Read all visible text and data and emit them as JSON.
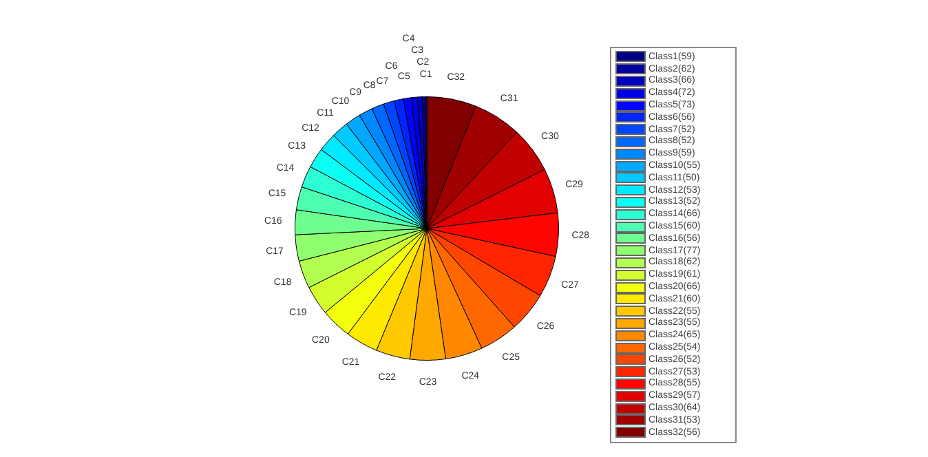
{
  "chart_data": {
    "type": "pie",
    "legend": "right",
    "categories": [
      "Class1(59)",
      "Class2(62)",
      "Class3(66)",
      "Class4(72)",
      "Class5(73)",
      "Class6(56)",
      "Class7(52)",
      "Class8(52)",
      "Class9(59)",
      "Class10(55)",
      "Class11(50)",
      "Class12(53)",
      "Class13(52)",
      "Class14(66)",
      "Class15(60)",
      "Class16(56)",
      "Class17(77)",
      "Class18(62)",
      "Class19(61)",
      "Class20(66)",
      "Class21(60)",
      "Class22(55)",
      "Class23(55)",
      "Class24(65)",
      "Class25(54)",
      "Class26(52)",
      "Class27(53)",
      "Class28(55)",
      "Class29(57)",
      "Class30(64)",
      "Class31(53)",
      "Class32(56)"
    ],
    "values": [
      0.19,
      0.38,
      0.57,
      0.76,
      0.95,
      1.14,
      1.33,
      1.52,
      1.7,
      1.89,
      2.08,
      2.27,
      2.46,
      2.65,
      2.84,
      3.03,
      3.22,
      3.41,
      3.6,
      3.79,
      3.98,
      4.17,
      4.36,
      4.55,
      4.73,
      4.92,
      5.11,
      5.3,
      5.49,
      5.68,
      5.87,
      6.06
    ],
    "colors": [
      "#000080",
      "#0000a0",
      "#0000c1",
      "#0000e2",
      "#0004ff",
      "#0025ff",
      "#0046ff",
      "#0067ff",
      "#0088ff",
      "#00a9ff",
      "#00c9ff",
      "#00eaff",
      "#0cfff3",
      "#2dffd2",
      "#4effb1",
      "#6fff90",
      "#90ff6f",
      "#b1ff4e",
      "#d2ff2d",
      "#f3ff0c",
      "#ffea00",
      "#ffc900",
      "#ffa900",
      "#ff8800",
      "#ff6700",
      "#ff4600",
      "#ff2500",
      "#ff0400",
      "#e20000",
      "#c10000",
      "#a00000",
      "#800000"
    ],
    "annotations": [
      "C1",
      "C2",
      "C3",
      "C4",
      "C5",
      "C6",
      "C7",
      "C8",
      "C9",
      "C10",
      "C11",
      "C12",
      "C13",
      "C14",
      "C15",
      "C16",
      "C17",
      "C18",
      "C19",
      "C20",
      "C21",
      "C22",
      "C23",
      "C24",
      "C25",
      "C26",
      "C27",
      "C28",
      "C29",
      "C30",
      "C31",
      "C32"
    ]
  }
}
